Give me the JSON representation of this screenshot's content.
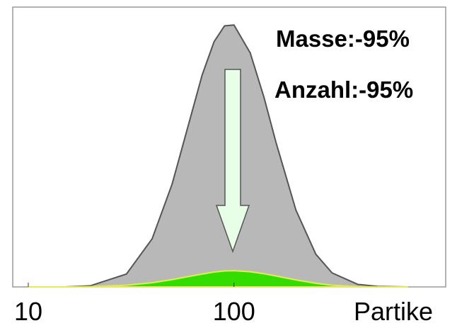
{
  "chart_data": {
    "type": "area",
    "xlabel": "Partike",
    "xscale": "log",
    "xlim": [
      8.4,
      1070
    ],
    "xticks": [
      10,
      100
    ],
    "ylim": [
      0,
      100
    ],
    "x": [
      10,
      15,
      20,
      30,
      40,
      50,
      60,
      70,
      80,
      90,
      100,
      120,
      140,
      160,
      200,
      250,
      300,
      400,
      500,
      700
    ],
    "series": [
      {
        "color": "#b8b8b8",
        "values": [
          0,
          0,
          0.4,
          4.6,
          17.2,
          36.7,
          57.8,
          75.7,
          87.6,
          93.3,
          93.6,
          83.6,
          67.7,
          51.7,
          27.5,
          11.7,
          5.0,
          0.9,
          0.2,
          0
        ]
      },
      {
        "color": "#33dd00",
        "values": [
          0,
          0,
          0.1,
          0.6,
          1.5,
          2.6,
          3.7,
          4.6,
          5.3,
          5.7,
          5.8,
          5.4,
          4.7,
          3.9,
          2.5,
          1.3,
          0.6,
          0.1,
          0,
          0
        ]
      }
    ],
    "annotations": [
      "Masse:-95%",
      "Anzahl:-95%"
    ]
  }
}
